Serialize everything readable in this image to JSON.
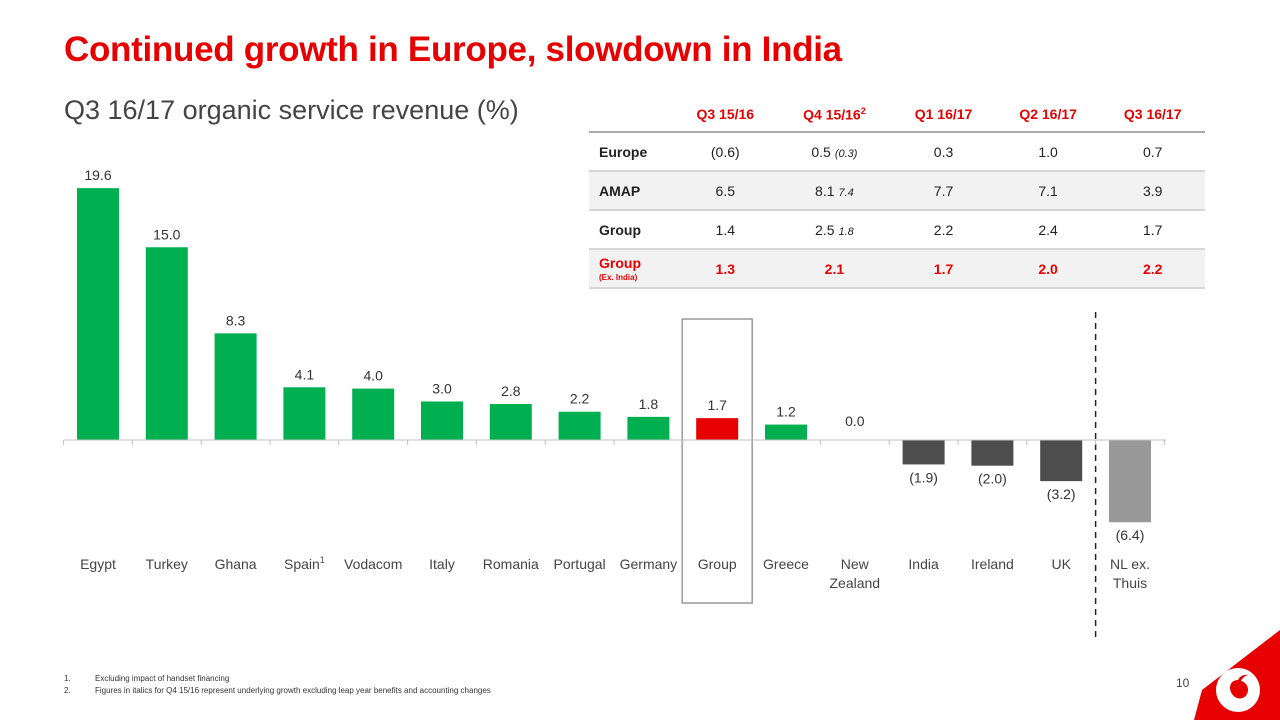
{
  "title": "Continued growth in Europe, slowdown in India",
  "subtitle": "Q3 16/17 organic service revenue (%)",
  "table": {
    "headers": [
      "Q3 15/16",
      "Q4 15/16",
      "Q1 16/17",
      "Q2 16/17",
      "Q3 16/17"
    ],
    "header_superscripts": [
      "",
      "2",
      "",
      "",
      ""
    ],
    "rows": [
      {
        "label": "Europe",
        "sublabel": "",
        "cells": [
          {
            "value": "(0.6)",
            "note": ""
          },
          {
            "value": "0.5",
            "note": "(0.3)"
          },
          {
            "value": "0.3",
            "note": ""
          },
          {
            "value": "1.0",
            "note": ""
          },
          {
            "value": "0.7",
            "note": ""
          }
        ]
      },
      {
        "label": "AMAP",
        "sublabel": "",
        "cells": [
          {
            "value": "6.5",
            "note": ""
          },
          {
            "value": "8.1",
            "note": "7.4"
          },
          {
            "value": "7.7",
            "note": ""
          },
          {
            "value": "7.1",
            "note": ""
          },
          {
            "value": "3.9",
            "note": ""
          }
        ]
      },
      {
        "label": "Group",
        "sublabel": "",
        "cells": [
          {
            "value": "1.4",
            "note": ""
          },
          {
            "value": "2.5",
            "note": "1.8"
          },
          {
            "value": "2.2",
            "note": ""
          },
          {
            "value": "2.4",
            "note": ""
          },
          {
            "value": "1.7",
            "note": ""
          }
        ]
      },
      {
        "label": "Group",
        "sublabel": "(Ex. India)",
        "cells": [
          {
            "value": "1.3",
            "note": ""
          },
          {
            "value": "2.1",
            "note": ""
          },
          {
            "value": "1.7",
            "note": ""
          },
          {
            "value": "2.0",
            "note": ""
          },
          {
            "value": "2.2",
            "note": ""
          }
        ]
      }
    ]
  },
  "chart_data": {
    "type": "bar",
    "title": "Q3 16/17 organic service revenue (%)",
    "categories": [
      "Egypt",
      "Turkey",
      "Ghana",
      "Spain",
      "Vodacom",
      "Italy",
      "Romania",
      "Portugal",
      "Germany",
      "Group",
      "Greece",
      "New Zealand",
      "India",
      "Ireland",
      "UK",
      "NL ex. Thuis"
    ],
    "category_lines": [
      [
        "Egypt"
      ],
      [
        "Turkey"
      ],
      [
        "Ghana"
      ],
      [
        "Spain"
      ],
      [
        "Vodacom"
      ],
      [
        "Italy"
      ],
      [
        "Romania"
      ],
      [
        "Portugal"
      ],
      [
        "Germany"
      ],
      [
        "Group"
      ],
      [
        "Greece"
      ],
      [
        "New",
        "Zealand"
      ],
      [
        "India"
      ],
      [
        "Ireland"
      ],
      [
        "UK"
      ],
      [
        "NL ex.",
        "Thuis"
      ]
    ],
    "category_superscripts": [
      "",
      "",
      "",
      "1",
      "",
      "",
      "",
      "",
      "",
      "",
      "",
      "",
      "",
      "",
      "",
      ""
    ],
    "values": [
      19.6,
      15.0,
      8.3,
      4.1,
      4.0,
      3.0,
      2.8,
      2.2,
      1.8,
      1.7,
      1.2,
      0.0,
      -1.9,
      -2.0,
      -3.2,
      -6.4
    ],
    "data_labels": [
      "19.6",
      "15.0",
      "8.3",
      "4.1",
      "4.0",
      "3.0",
      "2.8",
      "2.2",
      "1.8",
      "1.7",
      "1.2",
      "0.0",
      "(1.9)",
      "(2.0)",
      "(3.2)",
      "(6.4)"
    ],
    "highlight_category": "Group",
    "separator_before": "NL ex. Thuis",
    "colors": {
      "positive": "#00b050",
      "highlight": "#e60000",
      "negative": "#4d4d4d",
      "excluded": "#999999"
    },
    "xlabel": "",
    "ylabel": "",
    "grid": false,
    "legend": "none"
  },
  "footnotes": [
    {
      "num": "1.",
      "text": "Excluding impact of handset financing"
    },
    {
      "num": "2.",
      "text": "Figures in italics for Q4 15/16 represent underlying growth excluding leap year benefits and accounting changes"
    }
  ],
  "page_number": "10",
  "logo": "vodafone-logo-icon"
}
